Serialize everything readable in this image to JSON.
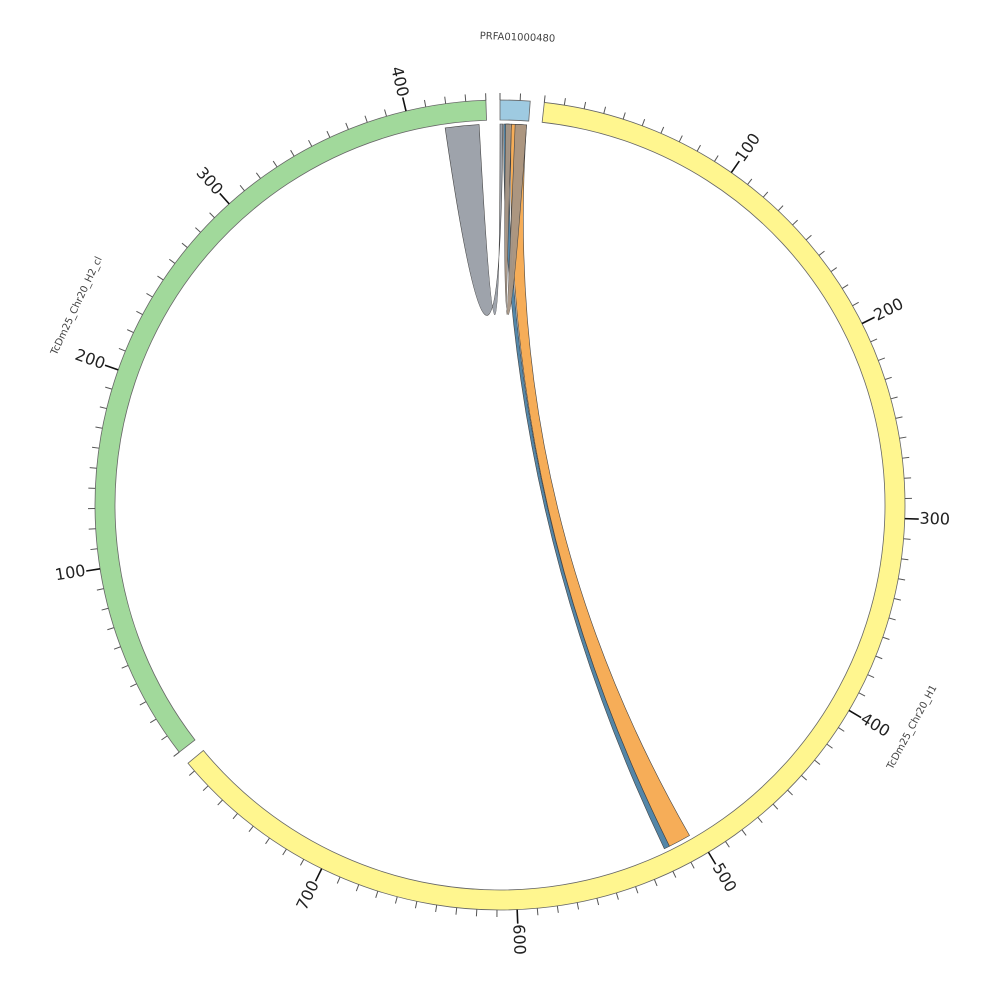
{
  "chart_data": {
    "type": "circos",
    "segments": [
      {
        "name": "PRFA01000480",
        "length": 15,
        "color": "#9ecae1",
        "ticks": [],
        "minor_tick_step": 10
      },
      {
        "name": "TcDm25_Chr20_H1",
        "length": 785,
        "color": "#fff68f",
        "ticks": [
          100,
          200,
          300,
          400,
          500,
          600,
          700
        ],
        "minor_tick_step": 10
      },
      {
        "name": "TcDm25_Chr20_H2_cl",
        "length": 440,
        "color": "#a1d99b",
        "ticks": [
          100,
          200,
          300,
          400
        ],
        "minor_tick_step": 10
      }
    ],
    "links": [
      {
        "source": "PRFA01000480",
        "source_range": [
          0,
          1.5
        ],
        "target": "TcDm25_Chr20_H2_cl",
        "target_range": [
          418,
          436
        ],
        "color": "#999ea6"
      },
      {
        "source": "PRFA01000480",
        "source_range": [
          6,
          14
        ],
        "target": "TcDm25_Chr20_H1",
        "target_range": [
          504,
          516
        ],
        "color": "#f5a94f"
      },
      {
        "source": "PRFA01000480",
        "source_range": [
          2,
          5
        ],
        "target": "TcDm25_Chr20_H1",
        "target_range": [
          516,
          519
        ],
        "color": "#4a7fa3"
      },
      {
        "source": "PRFA01000480",
        "source_range": [
          8,
          14
        ],
        "target": "PRFA01000480",
        "target_range": [
          3,
          6
        ],
        "color": "#a89583"
      }
    ]
  }
}
